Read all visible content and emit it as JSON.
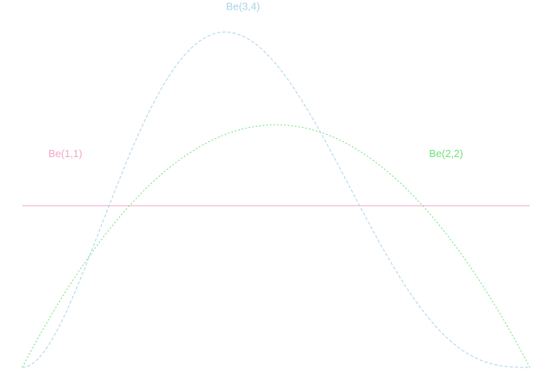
{
  "chart_data": {
    "type": "line",
    "title": "",
    "xlabel": "",
    "ylabel": "",
    "xlim": [
      0,
      1
    ],
    "ylim": [
      0,
      2.1
    ],
    "grid": false,
    "axes_visible": false,
    "series": [
      {
        "name": "Be(1,1)",
        "alpha": 1,
        "beta": 1,
        "color": "#f4a6c6",
        "dash": "solid",
        "label_at": {
          "x": 0.085,
          "y": 1.3
        }
      },
      {
        "name": "Be(2,2)",
        "alpha": 2,
        "beta": 2,
        "color": "#6ee27a",
        "dash": "dotted",
        "label_at": {
          "x": 0.835,
          "y": 1.3
        }
      },
      {
        "name": "Be(3,4)",
        "alpha": 3,
        "beta": 4,
        "color": "#a9d3e8",
        "dash": "dashed",
        "label_at": {
          "x": 0.435,
          "y": 2.21
        }
      }
    ]
  }
}
